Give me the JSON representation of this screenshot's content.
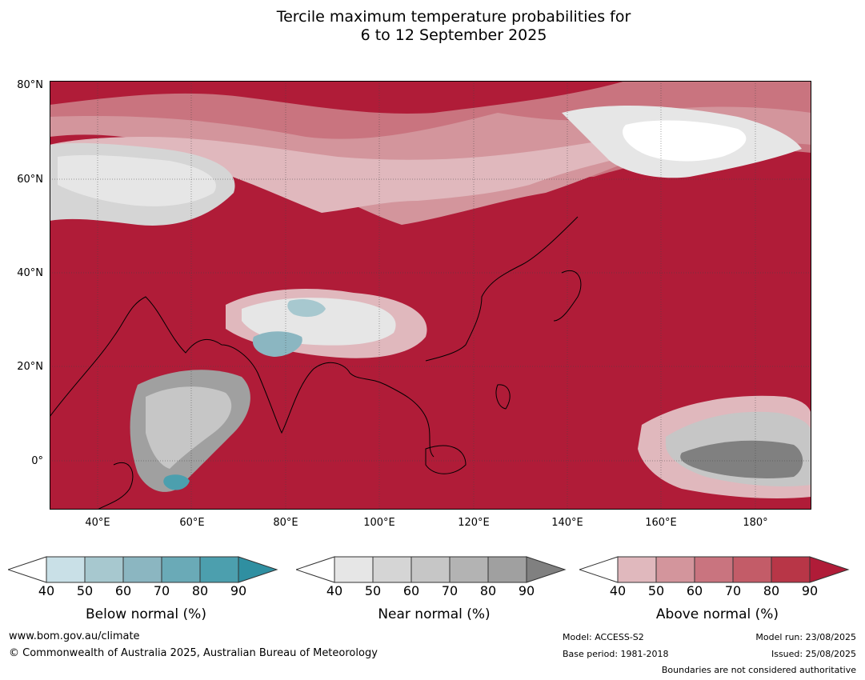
{
  "title": {
    "line1": "Tercile maximum temperature probabilities for",
    "line2": "6 to 12 September 2025"
  },
  "map": {
    "lat_labels": [
      "80°N",
      "60°N",
      "40°N",
      "20°N",
      "0°"
    ],
    "lon_labels": [
      "40°E",
      "60°E",
      "80°E",
      "100°E",
      "120°E",
      "140°E",
      "160°E",
      "180°"
    ]
  },
  "colorbars": [
    {
      "label": "Below normal (%)",
      "ticks": [
        "40",
        "50",
        "60",
        "70",
        "80",
        "90"
      ],
      "colors": [
        "#ffffff",
        "#c9e0e7",
        "#a7c8cf",
        "#8bb6c1",
        "#6aaab7",
        "#4c9fae",
        "#2f8fa1"
      ]
    },
    {
      "label": "Near normal (%)",
      "ticks": [
        "40",
        "50",
        "60",
        "70",
        "80",
        "90"
      ],
      "colors": [
        "#ffffff",
        "#e6e6e6",
        "#d5d5d5",
        "#c6c6c6",
        "#b3b3b3",
        "#a0a0a0",
        "#808080"
      ]
    },
    {
      "label": "Above normal (%)",
      "ticks": [
        "40",
        "50",
        "60",
        "70",
        "80",
        "90"
      ],
      "colors": [
        "#ffffff",
        "#e0b8bd",
        "#d3959c",
        "#c9747f",
        "#c35c68",
        "#b83647",
        "#b01c38"
      ]
    }
  ],
  "footer": {
    "website": "www.bom.gov.au/climate",
    "copyright": "© Commonwealth of Australia 2025, Australian Bureau of Meteorology",
    "model": "Model: ACCESS-S2",
    "base_period": "Base period: 1981-2018",
    "model_run": "Model run: 23/08/2025",
    "issued": "Issued: 25/08/2025",
    "disclaimer": "Boundaries are not considered authoritative"
  }
}
